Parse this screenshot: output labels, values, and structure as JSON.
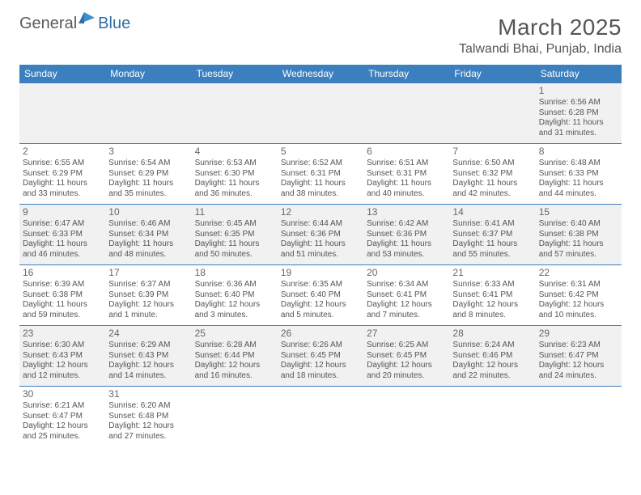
{
  "logo": {
    "word1": "General",
    "word2": "Blue"
  },
  "title": "March 2025",
  "location": "Talwandi Bhai, Punjab, India",
  "colors": {
    "header_bg": "#3b7fbf",
    "header_text": "#ffffff",
    "cell_border": "#3b7fbf",
    "alt_row_bg": "#f1f1f1",
    "text": "#555555",
    "logo_gray": "#5a5a5a",
    "logo_blue": "#2f6fa7"
  },
  "weekdays": [
    "Sunday",
    "Monday",
    "Tuesday",
    "Wednesday",
    "Thursday",
    "Friday",
    "Saturday"
  ],
  "weeks": [
    {
      "alt": true,
      "days": [
        null,
        null,
        null,
        null,
        null,
        null,
        {
          "n": "1",
          "sunrise": "Sunrise: 6:56 AM",
          "sunset": "Sunset: 6:28 PM",
          "day1": "Daylight: 11 hours",
          "day2": "and 31 minutes."
        }
      ]
    },
    {
      "alt": false,
      "days": [
        {
          "n": "2",
          "sunrise": "Sunrise: 6:55 AM",
          "sunset": "Sunset: 6:29 PM",
          "day1": "Daylight: 11 hours",
          "day2": "and 33 minutes."
        },
        {
          "n": "3",
          "sunrise": "Sunrise: 6:54 AM",
          "sunset": "Sunset: 6:29 PM",
          "day1": "Daylight: 11 hours",
          "day2": "and 35 minutes."
        },
        {
          "n": "4",
          "sunrise": "Sunrise: 6:53 AM",
          "sunset": "Sunset: 6:30 PM",
          "day1": "Daylight: 11 hours",
          "day2": "and 36 minutes."
        },
        {
          "n": "5",
          "sunrise": "Sunrise: 6:52 AM",
          "sunset": "Sunset: 6:31 PM",
          "day1": "Daylight: 11 hours",
          "day2": "and 38 minutes."
        },
        {
          "n": "6",
          "sunrise": "Sunrise: 6:51 AM",
          "sunset": "Sunset: 6:31 PM",
          "day1": "Daylight: 11 hours",
          "day2": "and 40 minutes."
        },
        {
          "n": "7",
          "sunrise": "Sunrise: 6:50 AM",
          "sunset": "Sunset: 6:32 PM",
          "day1": "Daylight: 11 hours",
          "day2": "and 42 minutes."
        },
        {
          "n": "8",
          "sunrise": "Sunrise: 6:48 AM",
          "sunset": "Sunset: 6:33 PM",
          "day1": "Daylight: 11 hours",
          "day2": "and 44 minutes."
        }
      ]
    },
    {
      "alt": true,
      "days": [
        {
          "n": "9",
          "sunrise": "Sunrise: 6:47 AM",
          "sunset": "Sunset: 6:33 PM",
          "day1": "Daylight: 11 hours",
          "day2": "and 46 minutes."
        },
        {
          "n": "10",
          "sunrise": "Sunrise: 6:46 AM",
          "sunset": "Sunset: 6:34 PM",
          "day1": "Daylight: 11 hours",
          "day2": "and 48 minutes."
        },
        {
          "n": "11",
          "sunrise": "Sunrise: 6:45 AM",
          "sunset": "Sunset: 6:35 PM",
          "day1": "Daylight: 11 hours",
          "day2": "and 50 minutes."
        },
        {
          "n": "12",
          "sunrise": "Sunrise: 6:44 AM",
          "sunset": "Sunset: 6:36 PM",
          "day1": "Daylight: 11 hours",
          "day2": "and 51 minutes."
        },
        {
          "n": "13",
          "sunrise": "Sunrise: 6:42 AM",
          "sunset": "Sunset: 6:36 PM",
          "day1": "Daylight: 11 hours",
          "day2": "and 53 minutes."
        },
        {
          "n": "14",
          "sunrise": "Sunrise: 6:41 AM",
          "sunset": "Sunset: 6:37 PM",
          "day1": "Daylight: 11 hours",
          "day2": "and 55 minutes."
        },
        {
          "n": "15",
          "sunrise": "Sunrise: 6:40 AM",
          "sunset": "Sunset: 6:38 PM",
          "day1": "Daylight: 11 hours",
          "day2": "and 57 minutes."
        }
      ]
    },
    {
      "alt": false,
      "days": [
        {
          "n": "16",
          "sunrise": "Sunrise: 6:39 AM",
          "sunset": "Sunset: 6:38 PM",
          "day1": "Daylight: 11 hours",
          "day2": "and 59 minutes."
        },
        {
          "n": "17",
          "sunrise": "Sunrise: 6:37 AM",
          "sunset": "Sunset: 6:39 PM",
          "day1": "Daylight: 12 hours",
          "day2": "and 1 minute."
        },
        {
          "n": "18",
          "sunrise": "Sunrise: 6:36 AM",
          "sunset": "Sunset: 6:40 PM",
          "day1": "Daylight: 12 hours",
          "day2": "and 3 minutes."
        },
        {
          "n": "19",
          "sunrise": "Sunrise: 6:35 AM",
          "sunset": "Sunset: 6:40 PM",
          "day1": "Daylight: 12 hours",
          "day2": "and 5 minutes."
        },
        {
          "n": "20",
          "sunrise": "Sunrise: 6:34 AM",
          "sunset": "Sunset: 6:41 PM",
          "day1": "Daylight: 12 hours",
          "day2": "and 7 minutes."
        },
        {
          "n": "21",
          "sunrise": "Sunrise: 6:33 AM",
          "sunset": "Sunset: 6:41 PM",
          "day1": "Daylight: 12 hours",
          "day2": "and 8 minutes."
        },
        {
          "n": "22",
          "sunrise": "Sunrise: 6:31 AM",
          "sunset": "Sunset: 6:42 PM",
          "day1": "Daylight: 12 hours",
          "day2": "and 10 minutes."
        }
      ]
    },
    {
      "alt": true,
      "days": [
        {
          "n": "23",
          "sunrise": "Sunrise: 6:30 AM",
          "sunset": "Sunset: 6:43 PM",
          "day1": "Daylight: 12 hours",
          "day2": "and 12 minutes."
        },
        {
          "n": "24",
          "sunrise": "Sunrise: 6:29 AM",
          "sunset": "Sunset: 6:43 PM",
          "day1": "Daylight: 12 hours",
          "day2": "and 14 minutes."
        },
        {
          "n": "25",
          "sunrise": "Sunrise: 6:28 AM",
          "sunset": "Sunset: 6:44 PM",
          "day1": "Daylight: 12 hours",
          "day2": "and 16 minutes."
        },
        {
          "n": "26",
          "sunrise": "Sunrise: 6:26 AM",
          "sunset": "Sunset: 6:45 PM",
          "day1": "Daylight: 12 hours",
          "day2": "and 18 minutes."
        },
        {
          "n": "27",
          "sunrise": "Sunrise: 6:25 AM",
          "sunset": "Sunset: 6:45 PM",
          "day1": "Daylight: 12 hours",
          "day2": "and 20 minutes."
        },
        {
          "n": "28",
          "sunrise": "Sunrise: 6:24 AM",
          "sunset": "Sunset: 6:46 PM",
          "day1": "Daylight: 12 hours",
          "day2": "and 22 minutes."
        },
        {
          "n": "29",
          "sunrise": "Sunrise: 6:23 AM",
          "sunset": "Sunset: 6:47 PM",
          "day1": "Daylight: 12 hours",
          "day2": "and 24 minutes."
        }
      ]
    },
    {
      "alt": false,
      "days": [
        {
          "n": "30",
          "sunrise": "Sunrise: 6:21 AM",
          "sunset": "Sunset: 6:47 PM",
          "day1": "Daylight: 12 hours",
          "day2": "and 25 minutes."
        },
        {
          "n": "31",
          "sunrise": "Sunrise: 6:20 AM",
          "sunset": "Sunset: 6:48 PM",
          "day1": "Daylight: 12 hours",
          "day2": "and 27 minutes."
        },
        null,
        null,
        null,
        null,
        null
      ]
    }
  ]
}
